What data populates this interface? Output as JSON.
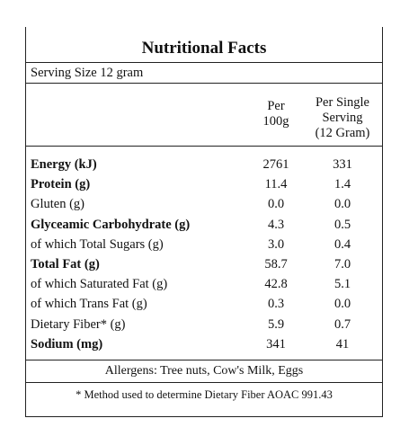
{
  "title": "Nutritional Facts",
  "serving_size": "Serving Size 12 gram",
  "columns": {
    "per_100g": [
      "Per",
      "100g"
    ],
    "per_serving": [
      "Per Single",
      "Serving",
      "(12 Gram)"
    ]
  },
  "rows": [
    {
      "label": "Energy (kJ)",
      "per_100g": "2761",
      "per_serving": "331",
      "bold": true
    },
    {
      "label": "Protein (g)",
      "per_100g": "11.4",
      "per_serving": "1.4",
      "bold": true
    },
    {
      "label": "Gluten (g)",
      "per_100g": "0.0",
      "per_serving": "0.0",
      "bold": false
    },
    {
      "label": "Glyceamic Carbohydrate (g)",
      "per_100g": "4.3",
      "per_serving": "0.5",
      "bold": true
    },
    {
      "label": "of which Total Sugars (g)",
      "per_100g": "3.0",
      "per_serving": "0.4",
      "bold": false
    },
    {
      "label": "Total Fat (g)",
      "per_100g": "58.7",
      "per_serving": "7.0",
      "bold": true
    },
    {
      "label": "of which Saturated Fat (g)",
      "per_100g": "42.8",
      "per_serving": "5.1",
      "bold": false
    },
    {
      "label": "of which Trans Fat (g)",
      "per_100g": "0.3",
      "per_serving": "0.0",
      "bold": false
    },
    {
      "label": "Dietary Fiber* (g)",
      "per_100g": "5.9",
      "per_serving": "0.7",
      "bold": false
    },
    {
      "label": "Sodium (mg)",
      "per_100g": "341",
      "per_serving": "41",
      "bold": true
    }
  ],
  "allergens": "Allergens: Tree nuts, Cow's Milk, Eggs",
  "footnote": "* Method used to determine Dietary Fiber AOAC 991.43"
}
